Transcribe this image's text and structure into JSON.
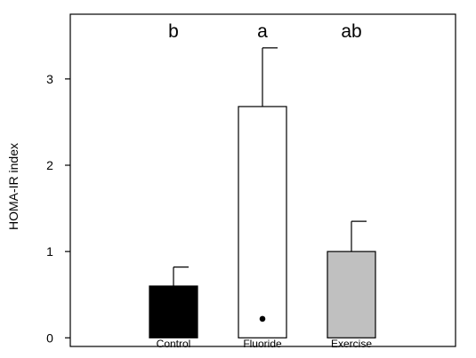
{
  "chart_data": {
    "type": "bar",
    "title": "",
    "xlabel": "",
    "ylabel": "HOMA-IR index",
    "ylim": [
      -0.1,
      3.75
    ],
    "yticks": [
      0,
      1,
      2,
      3
    ],
    "grid": false,
    "categories": [
      "Control",
      "Fluoride",
      "Exercise"
    ],
    "values": [
      0.6,
      2.68,
      1.0
    ],
    "error_upper": [
      0.82,
      3.36,
      1.35
    ],
    "bar_colors": [
      "#000000",
      "#ffffff",
      "#c0c0c0"
    ],
    "significance_labels": [
      "b",
      "a",
      "ab"
    ],
    "points": [
      {
        "category": "Fluoride",
        "y": 0.22
      }
    ]
  }
}
